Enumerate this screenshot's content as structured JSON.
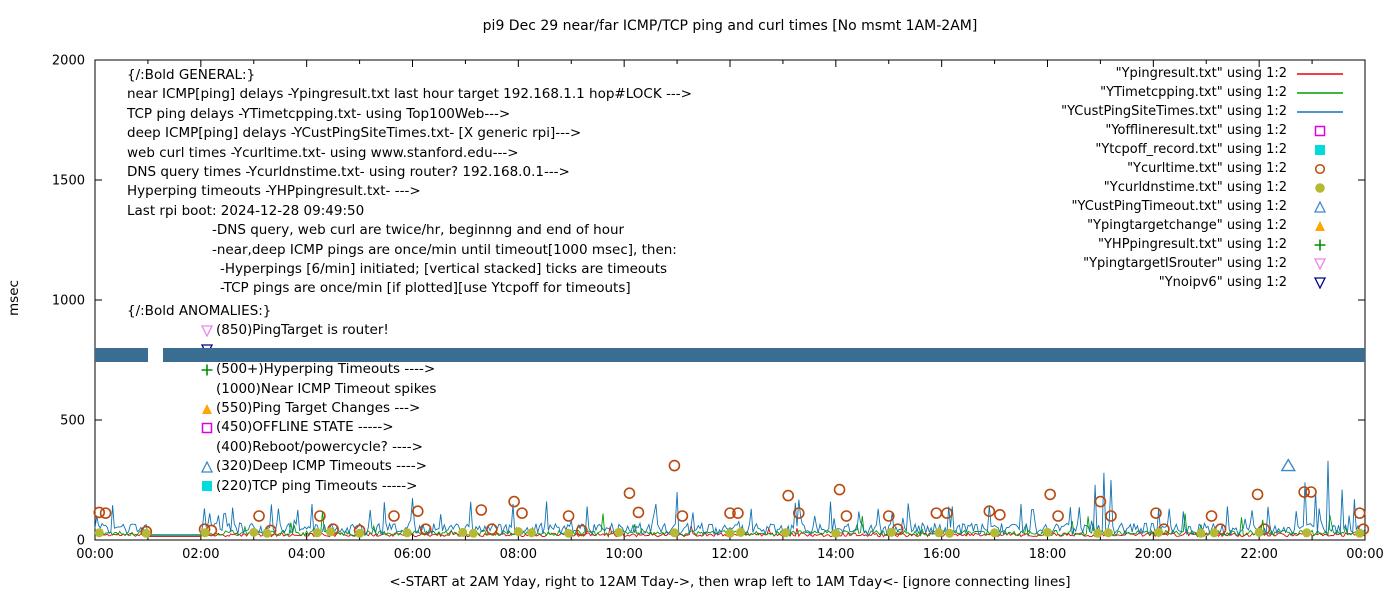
{
  "title": "pi9 Dec 29  near/far ICMP/TCP ping and curl times [No msmt 1AM-2AM]",
  "axes": {
    "ylabel": "msec",
    "xlabel": "<-START at 2AM Yday, right to 12AM Tday->, then wrap left to 1AM Tday<- [ignore connecting lines]",
    "yticks": [
      "0",
      "500",
      "1000",
      "1500",
      "2000"
    ],
    "xticks": [
      "00:00",
      "02:00",
      "04:00",
      "06:00",
      "08:00",
      "10:00",
      "12:00",
      "14:00",
      "16:00",
      "18:00",
      "20:00",
      "22:00",
      "00:00"
    ]
  },
  "legend": [
    {
      "label": "\"Ypingresult.txt\" using 1:2",
      "type": "line",
      "color": "#e8000d",
      "icon": "red-line"
    },
    {
      "label": "\"YTimetcpping.txt\" using 1:2",
      "type": "line",
      "color": "#00a000",
      "icon": "green-line"
    },
    {
      "label": "\"YCustPingSiteTimes.txt\" using 1:2",
      "type": "line",
      "color": "#1273b3",
      "icon": "blue-line"
    },
    {
      "label": "\"Yofflineresult.txt\" using 1:2",
      "type": "square-open",
      "color": "#e000e0",
      "icon": "magenta-open-square"
    },
    {
      "label": "\"Ytcpoff_record.txt\" using 1:2",
      "type": "square-filled",
      "color": "#00dcdc",
      "icon": "cyan-filled-square"
    },
    {
      "label": "\"Ycurltime.txt\" using 1:2",
      "type": "circle-open",
      "color": "#b8490f",
      "icon": "darkorange-open-circle"
    },
    {
      "label": "\"Ycurldnstime.txt\" using 1:2",
      "type": "circle-filled",
      "color": "#b5b933",
      "icon": "olive-filled-circle"
    },
    {
      "label": "\"YCustPingTimeout.txt\" using 1:2",
      "type": "triangle-up-open",
      "color": "#3f8ac9",
      "icon": "blue-open-triangle"
    },
    {
      "label": "\"Ypingtargetchange\" using 1:2",
      "type": "triangle-up-filled",
      "color": "#ffa500",
      "icon": "orange-filled-triangle"
    },
    {
      "label": "\"YHPpingresult.txt\" using 1:2",
      "type": "plus",
      "color": "#009000",
      "icon": "green-plus"
    },
    {
      "label": "\"YpingtargetISrouter\" using 1:2",
      "type": "triangle-down-open",
      "color": "#ee82ee",
      "icon": "violet-down-triangle"
    },
    {
      "label": "\"Ynoipv6\" using 1:2",
      "type": "triangle-down-open",
      "color": "#00008b",
      "icon": "navy-down-triangle"
    }
  ],
  "general_block": {
    "header": "{/:Bold GENERAL:}",
    "lines": [
      "near ICMP[ping] delays -Ypingresult.txt last hour target 192.168.1.1 hop#LOCK --->",
      "TCP ping delays -YTimetcpping.txt- using Top100Web--->",
      "deep ICMP[ping] delays -YCustPingSiteTimes.txt- [X generic rpi]--->",
      "web curl times -Ycurltime.txt- using www.stanford.edu--->",
      "DNS query times -Ycurldnstime.txt- using router? 192.168.0.1--->",
      "Hyperping timeouts -YHPpingresult.txt- --->",
      "Last rpi boot: 2024-12-28 09:49:50",
      "-DNS query, web curl are twice/hr, beginnng and end of hour",
      "-near,deep ICMP pings are once/min until timeout[1000 msec], then:",
      "-Hyperpings [6/min] initiated; [vertical stacked] ticks are timeouts",
      "-TCP pings are once/min [if plotted][use Ytcpoff for timeouts]"
    ]
  },
  "anomalies_block": {
    "header": "{/:Bold ANOMALIES:}",
    "items": [
      {
        "marker": "triangle-down-open",
        "color": "#ee82ee",
        "text": "(850)PingTarget is router!"
      },
      {
        "marker": "triangle-down-open",
        "color": "#00008b",
        "text": ""
      },
      {
        "marker": "plus",
        "color": "#009000",
        "text": "(500+)Hyperping Timeouts ---->"
      },
      {
        "marker": null,
        "color": null,
        "text": "(1000)Near ICMP Timeout spikes"
      },
      {
        "marker": "triangle-up-filled",
        "color": "#ffa500",
        "text": "(550)Ping Target Changes --->"
      },
      {
        "marker": "square-open",
        "color": "#e000e0",
        "text": "(450)OFFLINE STATE ----->"
      },
      {
        "marker": null,
        "color": null,
        "text": "(400)Reboot/powercycle? ---->"
      },
      {
        "marker": "triangle-up-open",
        "color": "#3f8ac9",
        "text": "(320)Deep ICMP Timeouts ---->"
      },
      {
        "marker": "square-filled",
        "color": "#00dcdc",
        "text": "(220)TCP ping Timeouts ----->"
      }
    ]
  },
  "chart_data": {
    "type": "line",
    "title": "pi9 Dec 29  near/far ICMP/TCP ping and curl times [No msmt 1AM-2AM]",
    "xlabel": "<-START at 2AM Yday, right to 12AM Tday->, then wrap left to 1AM Tday<- [ignore connecting lines]",
    "ylabel": "msec",
    "x_range": [
      0,
      24
    ],
    "ylim": [
      0,
      2000
    ],
    "quiet_hours": [
      1,
      2
    ],
    "lines": [
      {
        "name": "Ypingresult.txt",
        "color": "#e8000d",
        "seed": 11,
        "base": 14,
        "jitter": 16,
        "spike_chance": 0.012,
        "spike_max": 45,
        "extra_spikes": []
      },
      {
        "name": "YTimetcpping.txt",
        "color": "#00a000",
        "seed": 22,
        "base": 18,
        "jitter": 22,
        "spike_chance": 0.03,
        "spike_max": 70,
        "extra_spikes": [
          [
            4.3,
            120
          ],
          [
            9.6,
            110
          ],
          [
            14.5,
            100
          ],
          [
            20.6,
            110
          ]
        ]
      },
      {
        "name": "YCustPingSiteTimes.txt",
        "color": "#1273b3",
        "seed": 33,
        "base": 22,
        "jitter": 48,
        "spike_chance": 0.07,
        "spike_max": 110,
        "extra_spikes": [
          [
            0.35,
            145
          ],
          [
            2.6,
            135
          ],
          [
            4.1,
            150
          ],
          [
            5.2,
            125
          ],
          [
            7.1,
            160
          ],
          [
            7.9,
            150
          ],
          [
            9.3,
            140
          ],
          [
            10.6,
            150
          ],
          [
            11.0,
            200
          ],
          [
            12.4,
            130
          ],
          [
            13.9,
            160
          ],
          [
            14.8,
            130
          ],
          [
            16.2,
            140
          ],
          [
            17.5,
            150
          ],
          [
            18.9,
            230
          ],
          [
            19.05,
            280
          ],
          [
            19.2,
            250
          ],
          [
            20.3,
            130
          ],
          [
            21.4,
            140
          ],
          [
            22.85,
            240
          ],
          [
            23.05,
            200
          ],
          [
            23.3,
            330
          ],
          [
            23.55,
            210
          ],
          [
            23.8,
            170
          ]
        ]
      }
    ],
    "scatter": [
      {
        "name": "Ycurltime.txt",
        "marker": "circle-open",
        "color": "#b8490f",
        "points": [
          [
            0.08,
            115
          ],
          [
            0.2,
            112
          ],
          [
            0.97,
            35
          ],
          [
            2.07,
            45
          ],
          [
            2.2,
            40
          ],
          [
            3.1,
            100
          ],
          [
            3.32,
            40
          ],
          [
            4.25,
            100
          ],
          [
            4.5,
            45
          ],
          [
            5.0,
            40
          ],
          [
            5.65,
            100
          ],
          [
            6.1,
            120
          ],
          [
            6.25,
            45
          ],
          [
            7.3,
            125
          ],
          [
            7.5,
            45
          ],
          [
            7.92,
            160
          ],
          [
            8.07,
            112
          ],
          [
            8.95,
            100
          ],
          [
            9.2,
            40
          ],
          [
            10.1,
            195
          ],
          [
            10.27,
            115
          ],
          [
            10.95,
            310
          ],
          [
            11.1,
            100
          ],
          [
            12.0,
            112
          ],
          [
            12.15,
            112
          ],
          [
            13.1,
            185
          ],
          [
            13.3,
            112
          ],
          [
            14.07,
            210
          ],
          [
            14.2,
            100
          ],
          [
            15.0,
            100
          ],
          [
            15.17,
            45
          ],
          [
            15.9,
            112
          ],
          [
            16.1,
            112
          ],
          [
            16.9,
            120
          ],
          [
            17.1,
            105
          ],
          [
            18.05,
            190
          ],
          [
            18.2,
            100
          ],
          [
            19.0,
            160
          ],
          [
            19.2,
            100
          ],
          [
            20.05,
            112
          ],
          [
            20.2,
            45
          ],
          [
            21.1,
            100
          ],
          [
            21.27,
            45
          ],
          [
            21.97,
            190
          ],
          [
            22.1,
            45
          ],
          [
            22.85,
            200
          ],
          [
            22.98,
            200
          ],
          [
            23.9,
            112
          ],
          [
            23.97,
            45
          ]
        ]
      },
      {
        "name": "Ycurldnstime.txt",
        "marker": "circle-filled",
        "color": "#b5b933",
        "points": [
          [
            0.08,
            30
          ],
          [
            0.97,
            28
          ],
          [
            2.08,
            30
          ],
          [
            3.0,
            32
          ],
          [
            3.25,
            28
          ],
          [
            4.2,
            30
          ],
          [
            4.45,
            34
          ],
          [
            5.0,
            28
          ],
          [
            5.9,
            30
          ],
          [
            6.95,
            32
          ],
          [
            7.15,
            28
          ],
          [
            8.0,
            35
          ],
          [
            8.25,
            30
          ],
          [
            8.95,
            28
          ],
          [
            9.9,
            32
          ],
          [
            10.95,
            30
          ],
          [
            12.0,
            28
          ],
          [
            12.2,
            32
          ],
          [
            13.05,
            30
          ],
          [
            14.0,
            28
          ],
          [
            15.05,
            32
          ],
          [
            15.95,
            30
          ],
          [
            16.15,
            28
          ],
          [
            17.0,
            30
          ],
          [
            18.0,
            32
          ],
          [
            18.95,
            28
          ],
          [
            19.15,
            30
          ],
          [
            20.1,
            32
          ],
          [
            20.9,
            28
          ],
          [
            21.15,
            30
          ],
          [
            22.0,
            32
          ],
          [
            22.9,
            30
          ],
          [
            23.9,
            28
          ]
        ]
      },
      {
        "name": "YCustPingTimeout.txt",
        "marker": "triangle-up-open",
        "color": "#3f8ac9",
        "points": [
          [
            22.55,
            310
          ]
        ]
      }
    ],
    "band": {
      "name": "Ynoipv6",
      "color": "#3a6d92",
      "y_low": 742,
      "y_high": 798,
      "segments": [
        [
          0,
          1.0
        ],
        [
          1.28,
          24
        ]
      ]
    }
  }
}
